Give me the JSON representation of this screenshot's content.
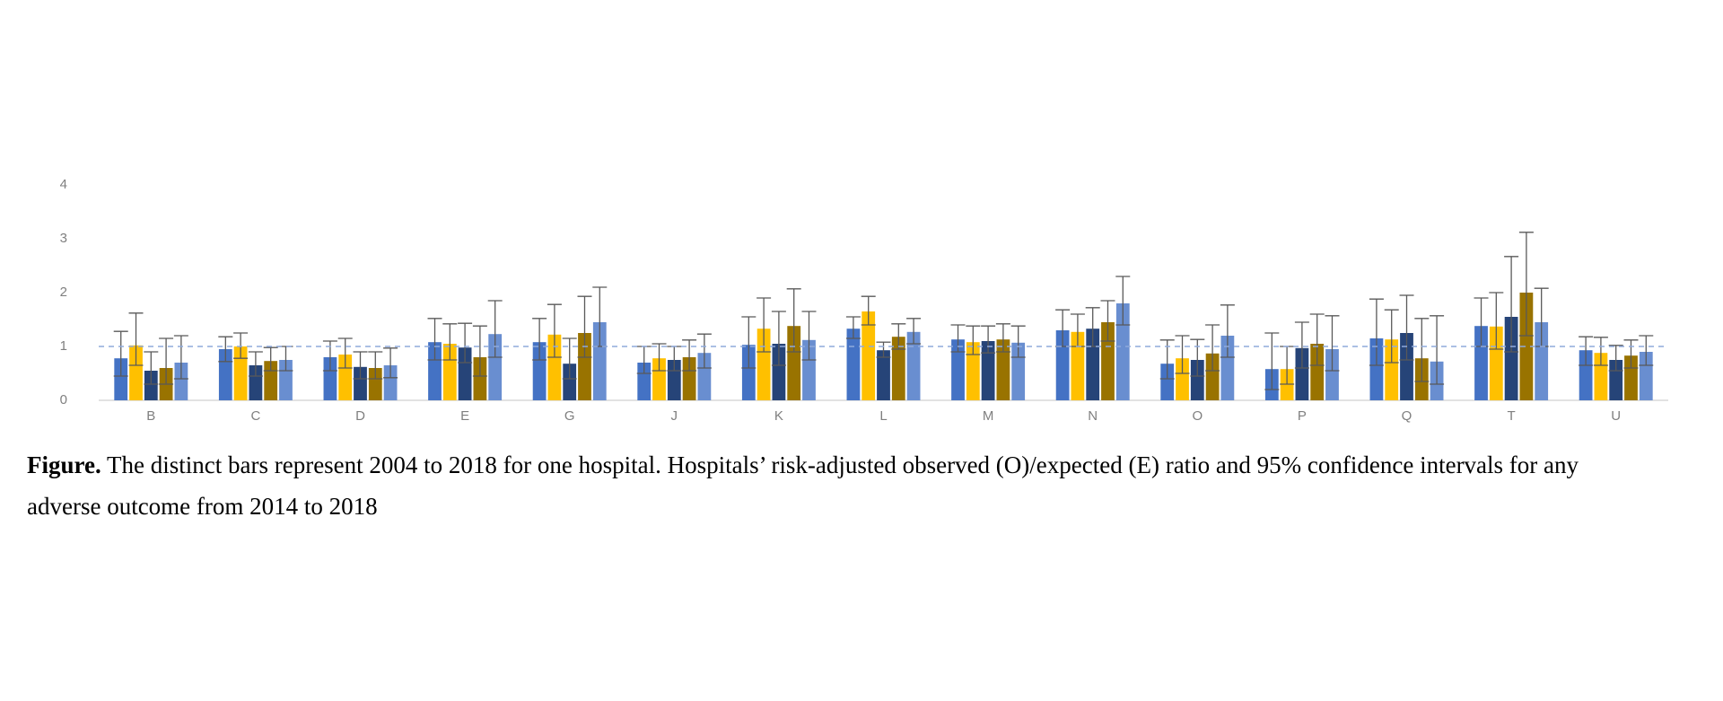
{
  "chart_data": {
    "type": "bar",
    "categories": [
      "B",
      "C",
      "D",
      "E",
      "G",
      "J",
      "K",
      "L",
      "M",
      "N",
      "O",
      "P",
      "Q",
      "T",
      "U"
    ],
    "ylim": [
      0,
      4
    ],
    "yticks": [
      0,
      1,
      2,
      3,
      4
    ],
    "reference_line": 1,
    "series": [
      {
        "color": "#4472c4",
        "values": [
          0.78,
          0.95,
          0.8,
          1.08,
          1.08,
          0.7,
          1.03,
          1.33,
          1.13,
          1.3,
          0.68,
          0.58,
          1.15,
          1.38,
          0.93
        ],
        "ci_low": [
          0.45,
          0.72,
          0.55,
          0.75,
          0.75,
          0.5,
          0.6,
          1.15,
          0.9,
          1.0,
          0.4,
          0.2,
          0.65,
          1.0,
          0.65
        ],
        "ci_high": [
          1.28,
          1.18,
          1.1,
          1.52,
          1.52,
          1.0,
          1.55,
          1.55,
          1.4,
          1.68,
          1.12,
          1.25,
          1.88,
          1.9,
          1.18
        ]
      },
      {
        "color": "#ffc000",
        "values": [
          1.02,
          1.0,
          0.85,
          1.05,
          1.22,
          0.78,
          1.33,
          1.65,
          1.08,
          1.27,
          0.78,
          0.58,
          1.13,
          1.37,
          0.88
        ],
        "ci_low": [
          0.65,
          0.78,
          0.6,
          0.75,
          0.8,
          0.55,
          0.9,
          1.4,
          0.85,
          1.0,
          0.5,
          0.3,
          0.7,
          0.95,
          0.65
        ],
        "ci_high": [
          1.62,
          1.25,
          1.15,
          1.42,
          1.78,
          1.05,
          1.9,
          1.93,
          1.38,
          1.6,
          1.2,
          1.0,
          1.68,
          2.0,
          1.17
        ]
      },
      {
        "color": "#264478",
        "values": [
          0.55,
          0.65,
          0.62,
          0.98,
          0.68,
          0.75,
          1.05,
          0.93,
          1.1,
          1.33,
          0.75,
          0.97,
          1.25,
          1.55,
          0.75
        ],
        "ci_low": [
          0.3,
          0.45,
          0.4,
          0.7,
          0.4,
          0.55,
          0.65,
          0.8,
          0.88,
          1.0,
          0.45,
          0.6,
          0.75,
          0.9,
          0.55
        ],
        "ci_high": [
          0.9,
          0.9,
          0.9,
          1.43,
          1.15,
          1.0,
          1.65,
          1.08,
          1.38,
          1.72,
          1.13,
          1.45,
          1.95,
          2.67,
          1.02
        ]
      },
      {
        "color": "#997300",
        "values": [
          0.6,
          0.73,
          0.6,
          0.8,
          1.25,
          0.8,
          1.38,
          1.18,
          1.13,
          1.45,
          0.87,
          1.05,
          0.78,
          2.0,
          0.83
        ],
        "ci_low": [
          0.3,
          0.55,
          0.4,
          0.45,
          0.8,
          0.55,
          0.9,
          0.95,
          0.9,
          1.1,
          0.55,
          0.65,
          0.35,
          1.2,
          0.6
        ],
        "ci_high": [
          1.15,
          0.98,
          0.9,
          1.38,
          1.93,
          1.12,
          2.07,
          1.42,
          1.42,
          1.85,
          1.4,
          1.6,
          1.52,
          3.12,
          1.12
        ]
      },
      {
        "color": "#698ed0",
        "values": [
          0.7,
          0.75,
          0.65,
          1.23,
          1.45,
          0.88,
          1.12,
          1.27,
          1.07,
          1.8,
          1.2,
          0.95,
          0.72,
          1.45,
          0.9
        ],
        "ci_low": [
          0.4,
          0.55,
          0.42,
          0.8,
          1.0,
          0.6,
          0.75,
          1.05,
          0.8,
          1.4,
          0.8,
          0.55,
          0.3,
          1.0,
          0.65
        ],
        "ci_high": [
          1.2,
          1.0,
          0.97,
          1.85,
          2.1,
          1.23,
          1.65,
          1.52,
          1.38,
          2.3,
          1.77,
          1.57,
          1.57,
          2.08,
          1.2
        ]
      }
    ]
  },
  "caption": {
    "label": "Figure.",
    "text": "The distinct bars represent 2004 to 2018 for one hospital. Hospitals’ risk-adjusted observed (O)/expected (E) ratio and 95% confidence intervals for any adverse outcome from 2014 to 2018"
  }
}
